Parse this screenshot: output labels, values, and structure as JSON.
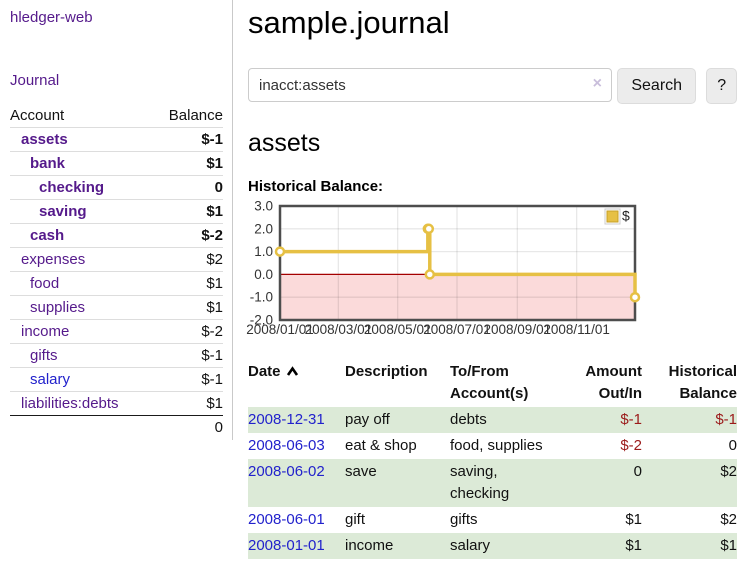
{
  "sidebar": {
    "app_title": "hledger-web",
    "journal_label": "Journal",
    "accounts_table": {
      "headers": {
        "account": "Account",
        "balance": "Balance"
      },
      "rows": [
        {
          "name": "assets",
          "indent": 1,
          "bold": true,
          "link": "purple",
          "balance": "$-1",
          "style": "neg-strong"
        },
        {
          "name": "bank",
          "indent": 2,
          "bold": true,
          "link": "purple",
          "balance": "$1",
          "style": "pos"
        },
        {
          "name": "checking",
          "indent": 3,
          "bold": true,
          "link": "purple",
          "balance": "0",
          "style": "pos"
        },
        {
          "name": "saving",
          "indent": 3,
          "bold": true,
          "link": "purple",
          "balance": "$1",
          "style": "pos"
        },
        {
          "name": "cash",
          "indent": 2,
          "bold": true,
          "link": "purple",
          "balance": "$-2",
          "style": "neg-strong"
        },
        {
          "name": "expenses",
          "indent": 1,
          "bold": false,
          "link": "purple",
          "balance": "$2",
          "style": "pos"
        },
        {
          "name": "food",
          "indent": 2,
          "bold": false,
          "link": "purple",
          "balance": "$1",
          "style": "pos"
        },
        {
          "name": "supplies",
          "indent": 2,
          "bold": false,
          "link": "purple",
          "balance": "$1",
          "style": "pos"
        },
        {
          "name": "income",
          "indent": 1,
          "bold": false,
          "link": "purple",
          "balance": "$-2",
          "style": "neg"
        },
        {
          "name": "gifts",
          "indent": 2,
          "bold": false,
          "link": "purple",
          "balance": "$-1",
          "style": "neg"
        },
        {
          "name": "salary",
          "indent": 2,
          "bold": false,
          "link": "blue",
          "balance": "$-1",
          "style": "neg"
        },
        {
          "name": "liabilities:debts",
          "indent": 1,
          "bold": false,
          "link": "purple",
          "balance": "$1",
          "style": "pos"
        }
      ],
      "total": "0"
    }
  },
  "header": {
    "title": "sample.journal"
  },
  "search": {
    "value": "inacct:assets",
    "clear_icon": "×",
    "search_label": "Search",
    "help_label": "?"
  },
  "account_page": {
    "heading": "assets",
    "chart_label": "Historical Balance:"
  },
  "chart_data": {
    "type": "line",
    "steps": true,
    "title": "Historical Balance",
    "legend": "$",
    "legend_position": "top-right",
    "grid": true,
    "xlim": [
      "2008-01-01",
      "2008-12-31"
    ],
    "ylim": [
      -2,
      3
    ],
    "y_ticks": [
      3.0,
      2.0,
      1.0,
      0.0,
      -1.0,
      -2.0
    ],
    "x_ticks": [
      "2008/01/01",
      "2008/03/01",
      "2008/05/01",
      "2008/07/01",
      "2008/09/01",
      "2008/11/01"
    ],
    "series": [
      {
        "name": "$",
        "color": "#e6c044",
        "point_fill": "#ffffff",
        "points": [
          [
            "2008-01-01",
            1
          ],
          [
            "2008-06-01",
            2
          ],
          [
            "2008-06-02",
            2
          ],
          [
            "2008-06-03",
            0
          ],
          [
            "2008-12-31",
            -1
          ]
        ]
      }
    ],
    "negative_fill": "#fbdada",
    "zero_line_color": "#a40000",
    "border_color": "#4d4d4d",
    "grid_color": "rgba(0,0,0,0.09)"
  },
  "register_table": {
    "headers": {
      "date": "Date",
      "sort_icon": "chevron-up",
      "description": "Description",
      "accounts_l1": "To/From",
      "accounts_l2": "Account(s)",
      "amount_l1": "Amount",
      "amount_l2": "Out/In",
      "balance_l1": "Historical",
      "balance_l2": "Balance"
    },
    "rows": [
      {
        "date": "2008-12-31",
        "description": "pay off",
        "accounts": "debts",
        "amount": "$-1",
        "amount_neg": true,
        "balance": "$-1",
        "balance_neg": true,
        "striped": true
      },
      {
        "date": "2008-06-03",
        "description": "eat & shop",
        "accounts": "food, supplies",
        "amount": "$-2",
        "amount_neg": true,
        "balance": "0",
        "balance_neg": false,
        "striped": false
      },
      {
        "date": "2008-06-02",
        "description": "save",
        "accounts": "saving, checking",
        "amount": "0",
        "amount_neg": false,
        "balance": "$2",
        "balance_neg": false,
        "striped": true
      },
      {
        "date": "2008-06-01",
        "description": "gift",
        "accounts": "gifts",
        "amount": "$1",
        "amount_neg": false,
        "balance": "$2",
        "balance_neg": false,
        "striped": false
      },
      {
        "date": "2008-01-01",
        "description": "income",
        "accounts": "salary",
        "amount": "$1",
        "amount_neg": false,
        "balance": "$1",
        "balance_neg": false,
        "striped": true
      }
    ]
  }
}
